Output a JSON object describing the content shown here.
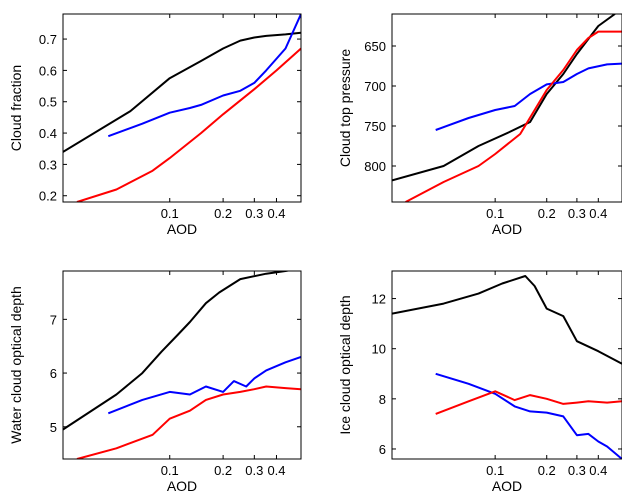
{
  "chart_data": [
    {
      "type": "line",
      "xlabel": "AOD",
      "ylabel": "Cloud fraction",
      "xscale": "log",
      "xlim": [
        0.025,
        0.55
      ],
      "ylim": [
        0.18,
        0.78
      ],
      "xticks": [
        0.1,
        0.2,
        0.3,
        0.4
      ],
      "xticklabels": [
        "0.1",
        "0.2",
        "0.3",
        "0.4"
      ],
      "yticks": [
        0.2,
        0.3,
        0.4,
        0.5,
        0.6,
        0.7
      ],
      "yticklabels": [
        "0.2",
        "0.3",
        "0.4",
        "0.5",
        "0.6",
        "0.7"
      ],
      "yreverse": false,
      "series": [
        {
          "color": "#000000",
          "x": [
            0.025,
            0.06,
            0.1,
            0.15,
            0.2,
            0.25,
            0.3,
            0.35,
            0.45,
            0.55
          ],
          "y": [
            0.34,
            0.47,
            0.575,
            0.63,
            0.67,
            0.695,
            0.705,
            0.71,
            0.715,
            0.72
          ]
        },
        {
          "color": "#0000ff",
          "x": [
            0.045,
            0.07,
            0.1,
            0.13,
            0.15,
            0.2,
            0.25,
            0.3,
            0.35,
            0.45,
            0.55
          ],
          "y": [
            0.39,
            0.43,
            0.465,
            0.48,
            0.49,
            0.52,
            0.535,
            0.56,
            0.6,
            0.67,
            0.78
          ]
        },
        {
          "color": "#ff0000",
          "x": [
            0.03,
            0.05,
            0.08,
            0.1,
            0.15,
            0.2,
            0.3,
            0.4,
            0.55
          ],
          "y": [
            0.18,
            0.22,
            0.28,
            0.32,
            0.4,
            0.46,
            0.54,
            0.6,
            0.67
          ]
        }
      ]
    },
    {
      "type": "line",
      "xlabel": "AOD",
      "ylabel": "Cloud top pressure",
      "xscale": "log",
      "xlim": [
        0.025,
        0.55
      ],
      "ylim": [
        610,
        845
      ],
      "xticks": [
        0.1,
        0.2,
        0.3,
        0.4
      ],
      "xticklabels": [
        "0.1",
        "0.2",
        "0.3",
        "0.4"
      ],
      "yticks": [
        650,
        700,
        750,
        800
      ],
      "yticklabels": [
        "650",
        "700",
        "750",
        "800"
      ],
      "yreverse": true,
      "series": [
        {
          "color": "#000000",
          "x": [
            0.025,
            0.05,
            0.08,
            0.12,
            0.16,
            0.2,
            0.25,
            0.3,
            0.4,
            0.5
          ],
          "y": [
            818,
            800,
            775,
            758,
            745,
            710,
            685,
            660,
            625,
            610
          ]
        },
        {
          "color": "#0000ff",
          "x": [
            0.045,
            0.07,
            0.1,
            0.13,
            0.16,
            0.2,
            0.25,
            0.3,
            0.35,
            0.45,
            0.55
          ],
          "y": [
            755,
            740,
            730,
            725,
            710,
            698,
            695,
            685,
            678,
            673,
            672
          ]
        },
        {
          "color": "#ff0000",
          "x": [
            0.03,
            0.05,
            0.08,
            0.1,
            0.14,
            0.2,
            0.25,
            0.3,
            0.35,
            0.4,
            0.55
          ],
          "y": [
            845,
            820,
            800,
            785,
            760,
            705,
            680,
            655,
            640,
            632,
            632
          ]
        }
      ]
    },
    {
      "type": "line",
      "xlabel": "AOD",
      "ylabel": "Water cloud optical depth",
      "xscale": "log",
      "xlim": [
        0.025,
        0.55
      ],
      "ylim": [
        4.4,
        7.9
      ],
      "xticks": [
        0.1,
        0.2,
        0.3,
        0.4
      ],
      "xticklabels": [
        "0.1",
        "0.2",
        "0.3",
        "0.4"
      ],
      "yticks": [
        5,
        6,
        7
      ],
      "yticklabels": [
        "5",
        "6",
        "7"
      ],
      "yreverse": false,
      "series": [
        {
          "color": "#000000",
          "x": [
            0.025,
            0.05,
            0.07,
            0.09,
            0.11,
            0.13,
            0.16,
            0.19,
            0.25,
            0.35,
            0.45,
            0.55
          ],
          "y": [
            4.95,
            5.6,
            6.0,
            6.4,
            6.7,
            6.95,
            7.3,
            7.5,
            7.75,
            7.85,
            7.9,
            7.95
          ]
        },
        {
          "color": "#0000ff",
          "x": [
            0.045,
            0.07,
            0.1,
            0.13,
            0.16,
            0.2,
            0.23,
            0.27,
            0.3,
            0.35,
            0.45,
            0.55
          ],
          "y": [
            5.25,
            5.5,
            5.65,
            5.6,
            5.75,
            5.65,
            5.85,
            5.75,
            5.9,
            6.05,
            6.2,
            6.3
          ]
        },
        {
          "color": "#ff0000",
          "x": [
            0.03,
            0.05,
            0.08,
            0.1,
            0.13,
            0.16,
            0.2,
            0.25,
            0.3,
            0.35,
            0.45,
            0.55
          ],
          "y": [
            4.4,
            4.6,
            4.85,
            5.15,
            5.3,
            5.5,
            5.6,
            5.65,
            5.7,
            5.75,
            5.72,
            5.7
          ]
        }
      ]
    },
    {
      "type": "line",
      "xlabel": "AOD",
      "ylabel": "Ice cloud optical depth",
      "xscale": "log",
      "xlim": [
        0.025,
        0.55
      ],
      "ylim": [
        5.6,
        13.1
      ],
      "xticks": [
        0.1,
        0.2,
        0.3,
        0.4
      ],
      "xticklabels": [
        "0.1",
        "0.2",
        "0.3",
        "0.4"
      ],
      "yticks": [
        6,
        8,
        10,
        12
      ],
      "yticklabels": [
        "6",
        "8",
        "10",
        "12"
      ],
      "yreverse": false,
      "series": [
        {
          "color": "#000000",
          "x": [
            0.025,
            0.05,
            0.08,
            0.11,
            0.15,
            0.17,
            0.2,
            0.25,
            0.3,
            0.4,
            0.55
          ],
          "y": [
            11.4,
            11.8,
            12.2,
            12.6,
            12.9,
            12.5,
            11.6,
            11.3,
            10.3,
            9.9,
            9.4
          ]
        },
        {
          "color": "#0000ff",
          "x": [
            0.045,
            0.07,
            0.1,
            0.13,
            0.16,
            0.2,
            0.25,
            0.3,
            0.35,
            0.4,
            0.45,
            0.55
          ],
          "y": [
            9.0,
            8.6,
            8.2,
            7.7,
            7.5,
            7.45,
            7.3,
            6.55,
            6.6,
            6.3,
            6.1,
            5.6
          ]
        },
        {
          "color": "#ff0000",
          "x": [
            0.045,
            0.07,
            0.1,
            0.13,
            0.16,
            0.2,
            0.25,
            0.3,
            0.35,
            0.45,
            0.55
          ],
          "y": [
            7.4,
            7.9,
            8.3,
            7.95,
            8.15,
            8.0,
            7.8,
            7.85,
            7.9,
            7.85,
            7.9
          ]
        }
      ]
    }
  ]
}
